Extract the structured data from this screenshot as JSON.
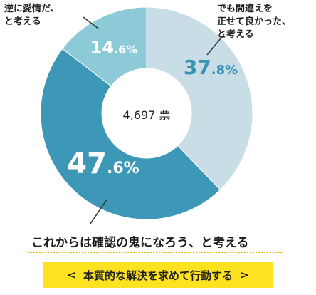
{
  "chart_data": {
    "type": "pie",
    "variant": "donut",
    "center_label": "4,697 票",
    "slices": [
      {
        "label": "でも間違えを正せて良かった、と考える",
        "value": 37.8,
        "int": "37",
        "dec": ".8%",
        "color": "#c9dde6",
        "text_color": "#3a93b4"
      },
      {
        "label": "これからは確認の鬼になろう、と考える",
        "value": 47.6,
        "int": "47",
        "dec": ".6%",
        "color": "#3d97b6",
        "text_color": "#ffffff"
      },
      {
        "label": "逆に愛情だ、と考える",
        "value": 14.6,
        "int": "14",
        "dec": ".6%",
        "color": "#8ccad8",
        "text_color": "#ffffff"
      }
    ]
  },
  "callouts": {
    "left": [
      "逆に愛情だ、",
      "と考える"
    ],
    "right": [
      "でも間違えを",
      "正せて良かった、",
      "と考える"
    ]
  },
  "main_label": "これからは確認の鬼になろう、と考える",
  "cta": {
    "left_arrow": "<",
    "label": "本質的な解決を求めて行動する",
    "right_arrow": ">"
  },
  "colors": {
    "cta_bg": "#fde221",
    "underline": "#e2c000"
  }
}
